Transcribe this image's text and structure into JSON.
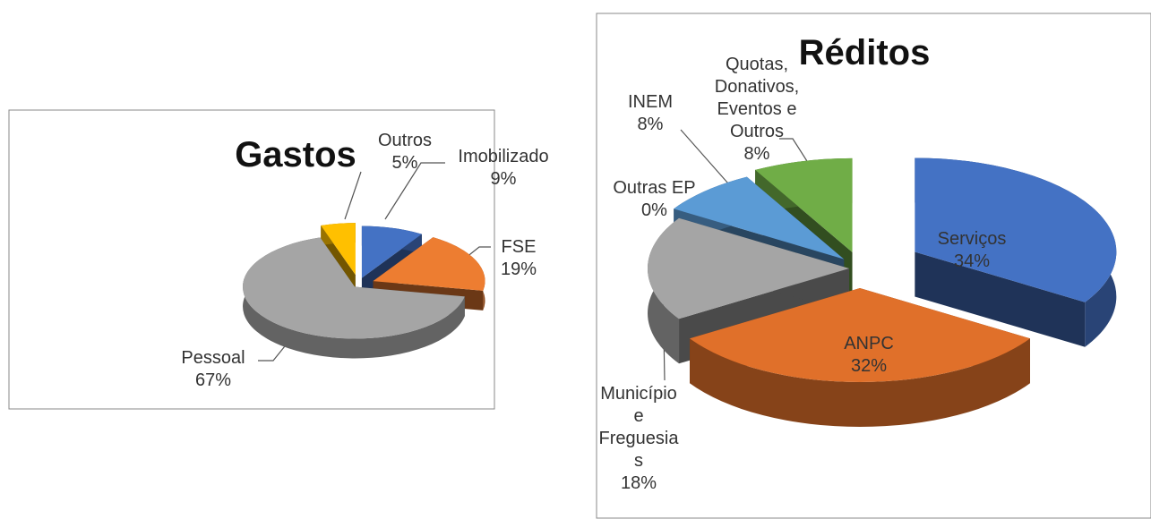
{
  "chart_data": [
    {
      "type": "pie",
      "title": "Gastos",
      "categories": [
        "Imobilizado",
        "FSE",
        "Pessoal",
        "Outros"
      ],
      "values": [
        9,
        19,
        67,
        5
      ],
      "value_labels": [
        "9%",
        "19%",
        "67%",
        "5%"
      ],
      "colors": [
        "#4472c4",
        "#ed7d31",
        "#a5a5a5",
        "#ffc000"
      ]
    },
    {
      "type": "pie",
      "title": "Réditos",
      "categories": [
        "Serviços",
        "ANPC",
        "Município e Freguesias",
        "Outras EP",
        "INEM",
        "Quotas, Donativos, Eventos e Outros"
      ],
      "values": [
        34,
        32,
        18,
        0,
        8,
        8
      ],
      "value_labels": [
        "34%",
        "32%",
        "18%",
        "0%",
        "8%",
        "8%"
      ],
      "colors": [
        "#4472c4",
        "#e0702a",
        "#a5a5a5",
        "#997300",
        "#5b9bd5",
        "#70ad47"
      ]
    }
  ]
}
